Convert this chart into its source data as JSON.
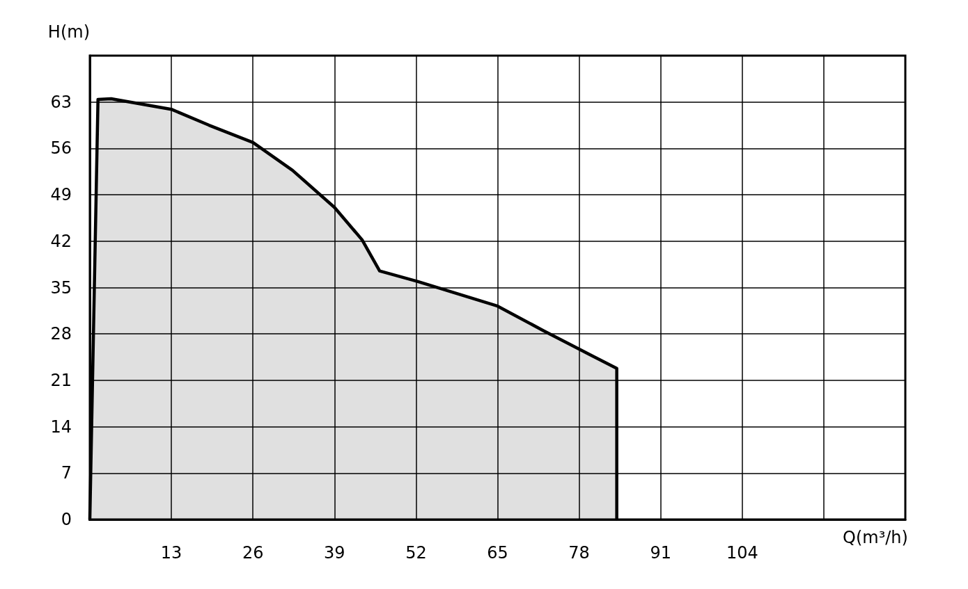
{
  "chart_data": {
    "type": "area",
    "xlabel": "Q(m³/h)",
    "ylabel": "H(m)",
    "xlim": [
      0,
      130
    ],
    "ylim": [
      0,
      70
    ],
    "xticks": [
      {
        "value": 0,
        "label": null
      },
      13,
      26,
      39,
      52,
      65,
      78,
      91,
      104,
      {
        "value": 117,
        "label": null
      },
      {
        "value": 130,
        "label": null
      }
    ],
    "yticks": [
      0,
      7,
      14,
      21,
      28,
      35,
      42,
      49,
      56,
      63,
      {
        "value": 70,
        "label": null
      }
    ],
    "grid": true,
    "marker": "none",
    "line_style": "solid",
    "series": [
      {
        "color": "#000000",
        "x": [
          0,
          1.3,
          3.4,
          13,
          19,
          26,
          32.3,
          39,
          43.4,
          46.2,
          52.3,
          65,
          72.3,
          78,
          84,
          84
        ],
        "values": [
          0,
          63.4,
          63.5,
          61.9,
          59.5,
          56.9,
          52.7,
          47.1,
          42.2,
          37.5,
          35.9,
          32.2,
          28.5,
          25.7,
          22.8,
          0
        ]
      }
    ]
  }
}
